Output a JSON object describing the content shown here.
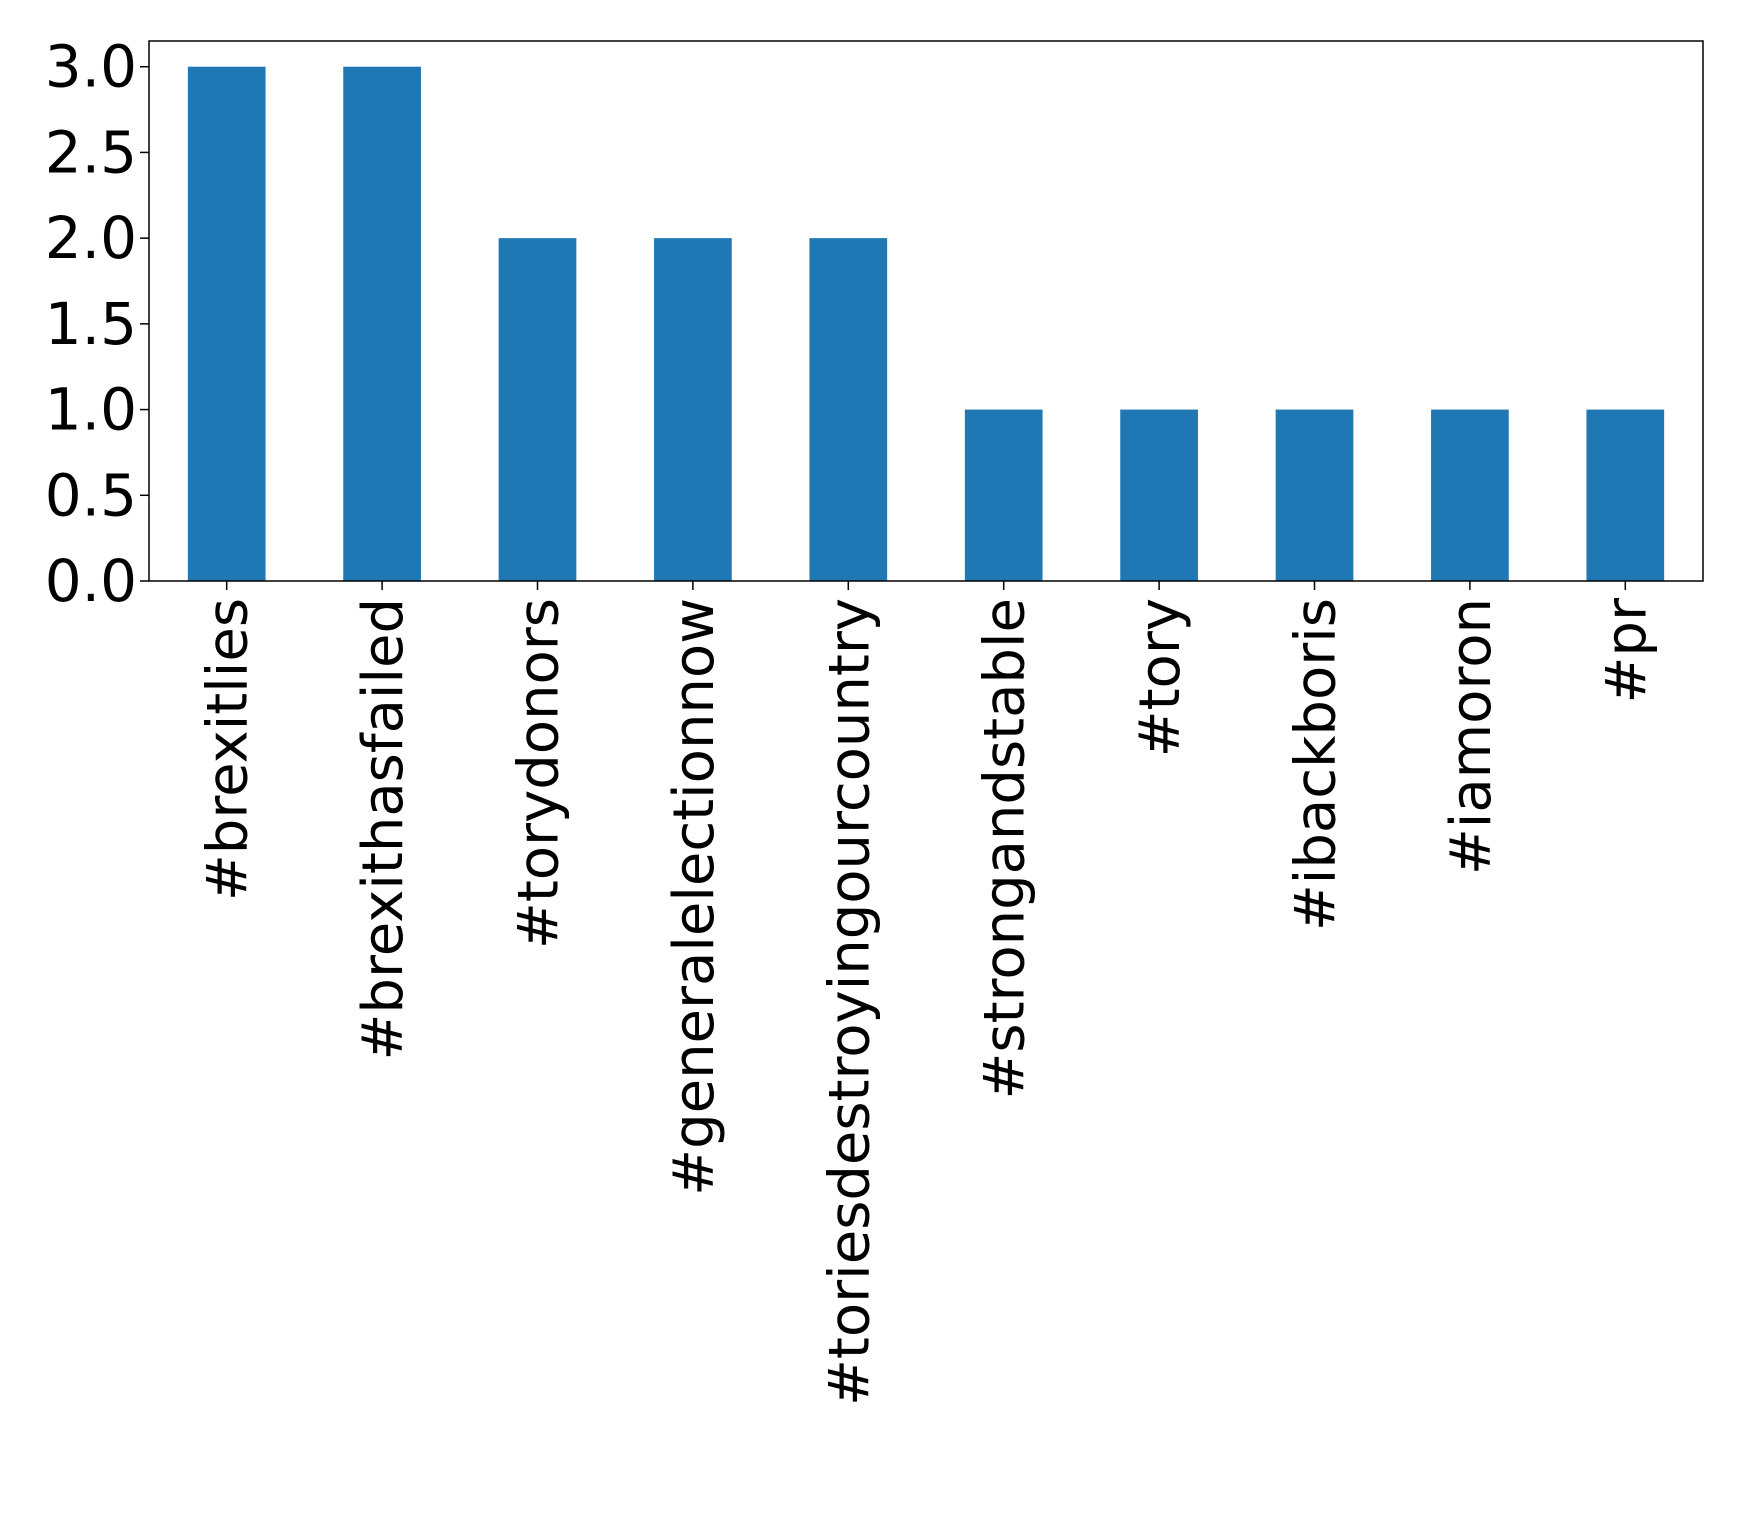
{
  "chart_data": {
    "type": "bar",
    "title": "",
    "xlabel": "",
    "ylabel": "",
    "categories": [
      "#brexitlies",
      "#brexithasfailed",
      "#torydonors",
      "#generalelectionnow",
      "#toriesdestroyingourcountry",
      "#strongandstable",
      "#tory",
      "#ibackboris",
      "#iamoron",
      "#pr"
    ],
    "values": [
      3,
      3,
      2,
      2,
      2,
      1,
      1,
      1,
      1,
      1
    ],
    "ylim": [
      0,
      3.15
    ],
    "yticks": [
      "0.0",
      "0.5",
      "1.0",
      "1.5",
      "2.0",
      "2.5",
      "3.0"
    ],
    "grid": false,
    "legend": "none",
    "bar_color": "#1f77b4"
  }
}
